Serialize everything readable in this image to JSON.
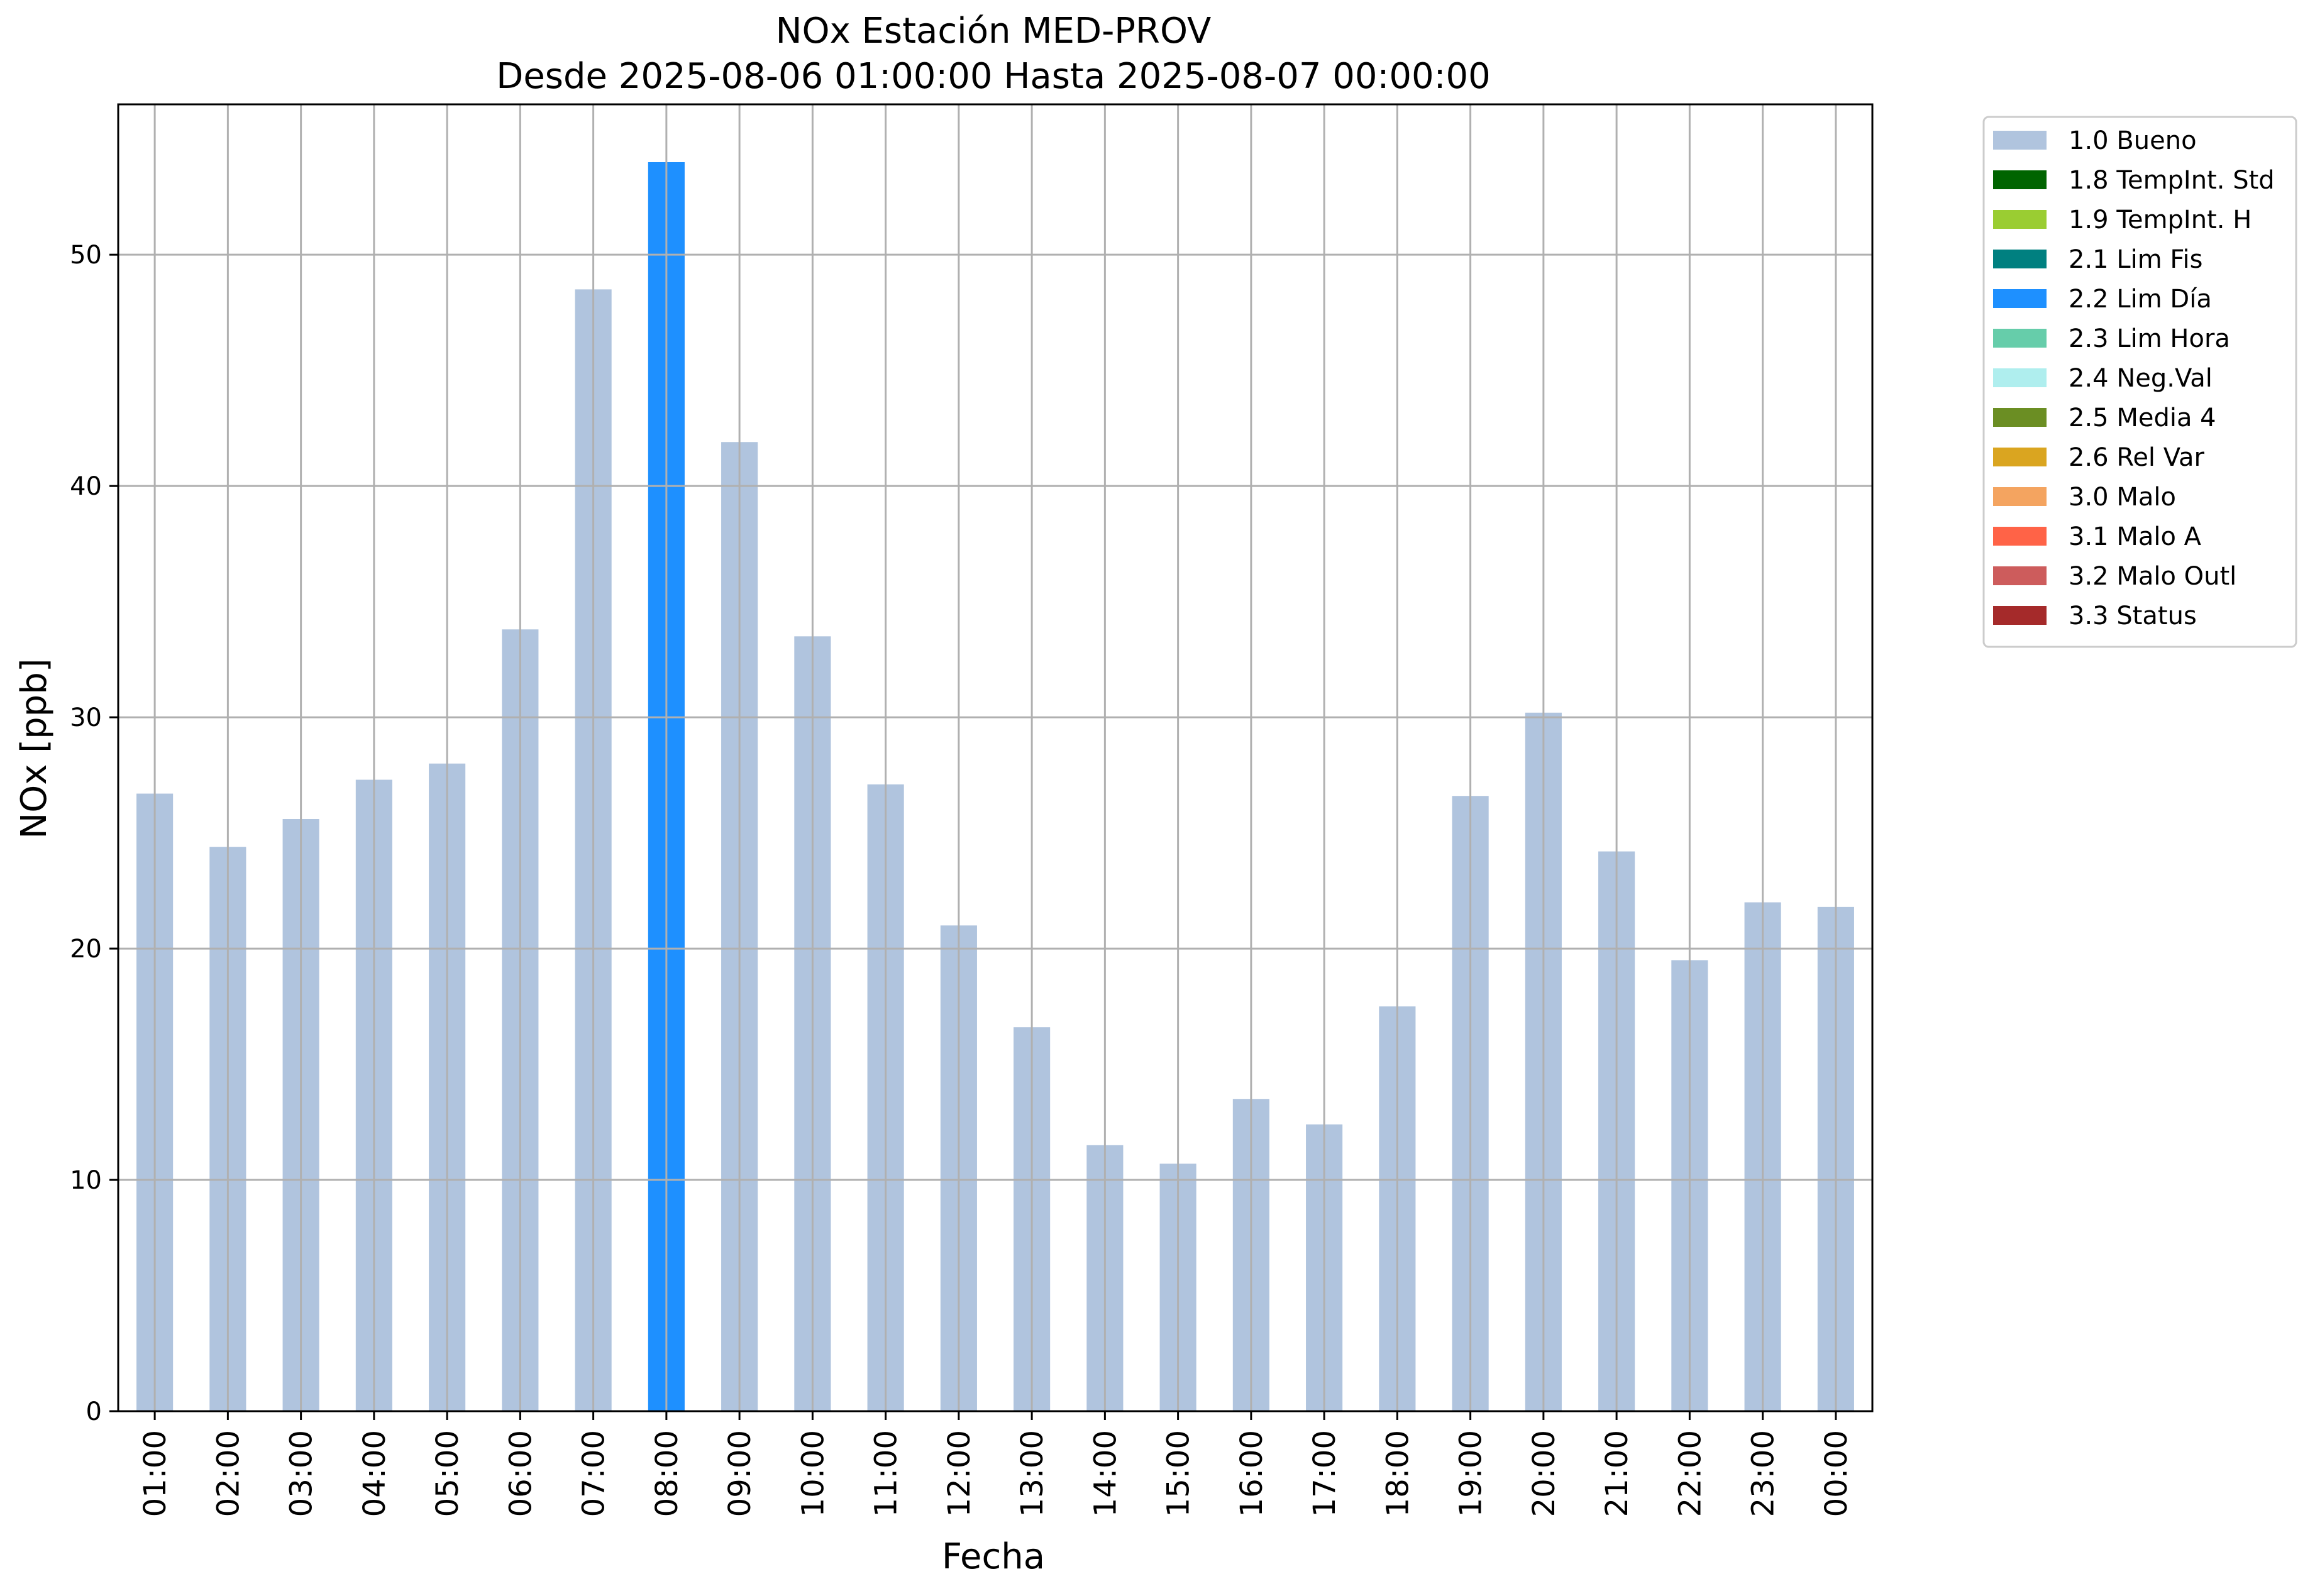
{
  "chart_data": {
    "type": "bar",
    "title": "NOx Estación MED-PROV",
    "subtitle": "Desde 2025-08-06 01:00:00 Hasta 2025-08-07 00:00:00",
    "xlabel": "Fecha",
    "ylabel": "NOx [ppb]",
    "ylim": [
      0,
      56.5
    ],
    "yticks": [
      0,
      10,
      20,
      30,
      40,
      50
    ],
    "grid": true,
    "legend_position": "outside-top-right",
    "categories": [
      "01:00",
      "02:00",
      "03:00",
      "04:00",
      "05:00",
      "06:00",
      "07:00",
      "08:00",
      "09:00",
      "10:00",
      "11:00",
      "12:00",
      "13:00",
      "14:00",
      "15:00",
      "16:00",
      "17:00",
      "18:00",
      "19:00",
      "20:00",
      "21:00",
      "22:00",
      "23:00",
      "00:00"
    ],
    "values": [
      26.7,
      24.4,
      25.6,
      27.3,
      28.0,
      33.8,
      48.5,
      54.0,
      41.9,
      33.5,
      27.1,
      21.0,
      16.6,
      11.5,
      10.7,
      13.5,
      12.4,
      17.5,
      26.6,
      30.2,
      24.2,
      19.5,
      22.0,
      21.8
    ],
    "flags": [
      "1.0 Bueno",
      "1.0 Bueno",
      "1.0 Bueno",
      "1.0 Bueno",
      "1.0 Bueno",
      "1.0 Bueno",
      "1.0 Bueno",
      "2.2 Lim Día",
      "1.0 Bueno",
      "1.0 Bueno",
      "1.0 Bueno",
      "1.0 Bueno",
      "1.0 Bueno",
      "1.0 Bueno",
      "1.0 Bueno",
      "1.0 Bueno",
      "1.0 Bueno",
      "1.0 Bueno",
      "1.0 Bueno",
      "1.0 Bueno",
      "1.0 Bueno",
      "1.0 Bueno",
      "1.0 Bueno",
      "1.0 Bueno"
    ],
    "legend": [
      {
        "label": "1.0 Bueno",
        "color": "#b0c4de"
      },
      {
        "label": "1.8 TempInt. Std",
        "color": "#006400"
      },
      {
        "label": "1.9 TempInt. H",
        "color": "#9acd32"
      },
      {
        "label": "2.1 Lim Fis",
        "color": "#008080"
      },
      {
        "label": "2.2 Lim Día",
        "color": "#1e90ff"
      },
      {
        "label": "2.3 Lim Hora",
        "color": "#66cdaa"
      },
      {
        "label": "2.4 Neg.Val",
        "color": "#afeeee"
      },
      {
        "label": "2.5 Media 4",
        "color": "#6b8e23"
      },
      {
        "label": "2.6 Rel Var",
        "color": "#daa520"
      },
      {
        "label": "3.0 Malo",
        "color": "#f4a460"
      },
      {
        "label": "3.1 Malo A",
        "color": "#ff6347"
      },
      {
        "label": "3.2 Malo Outl",
        "color": "#cd5c5c"
      },
      {
        "label": "3.3 Status",
        "color": "#a52a2a"
      }
    ]
  }
}
